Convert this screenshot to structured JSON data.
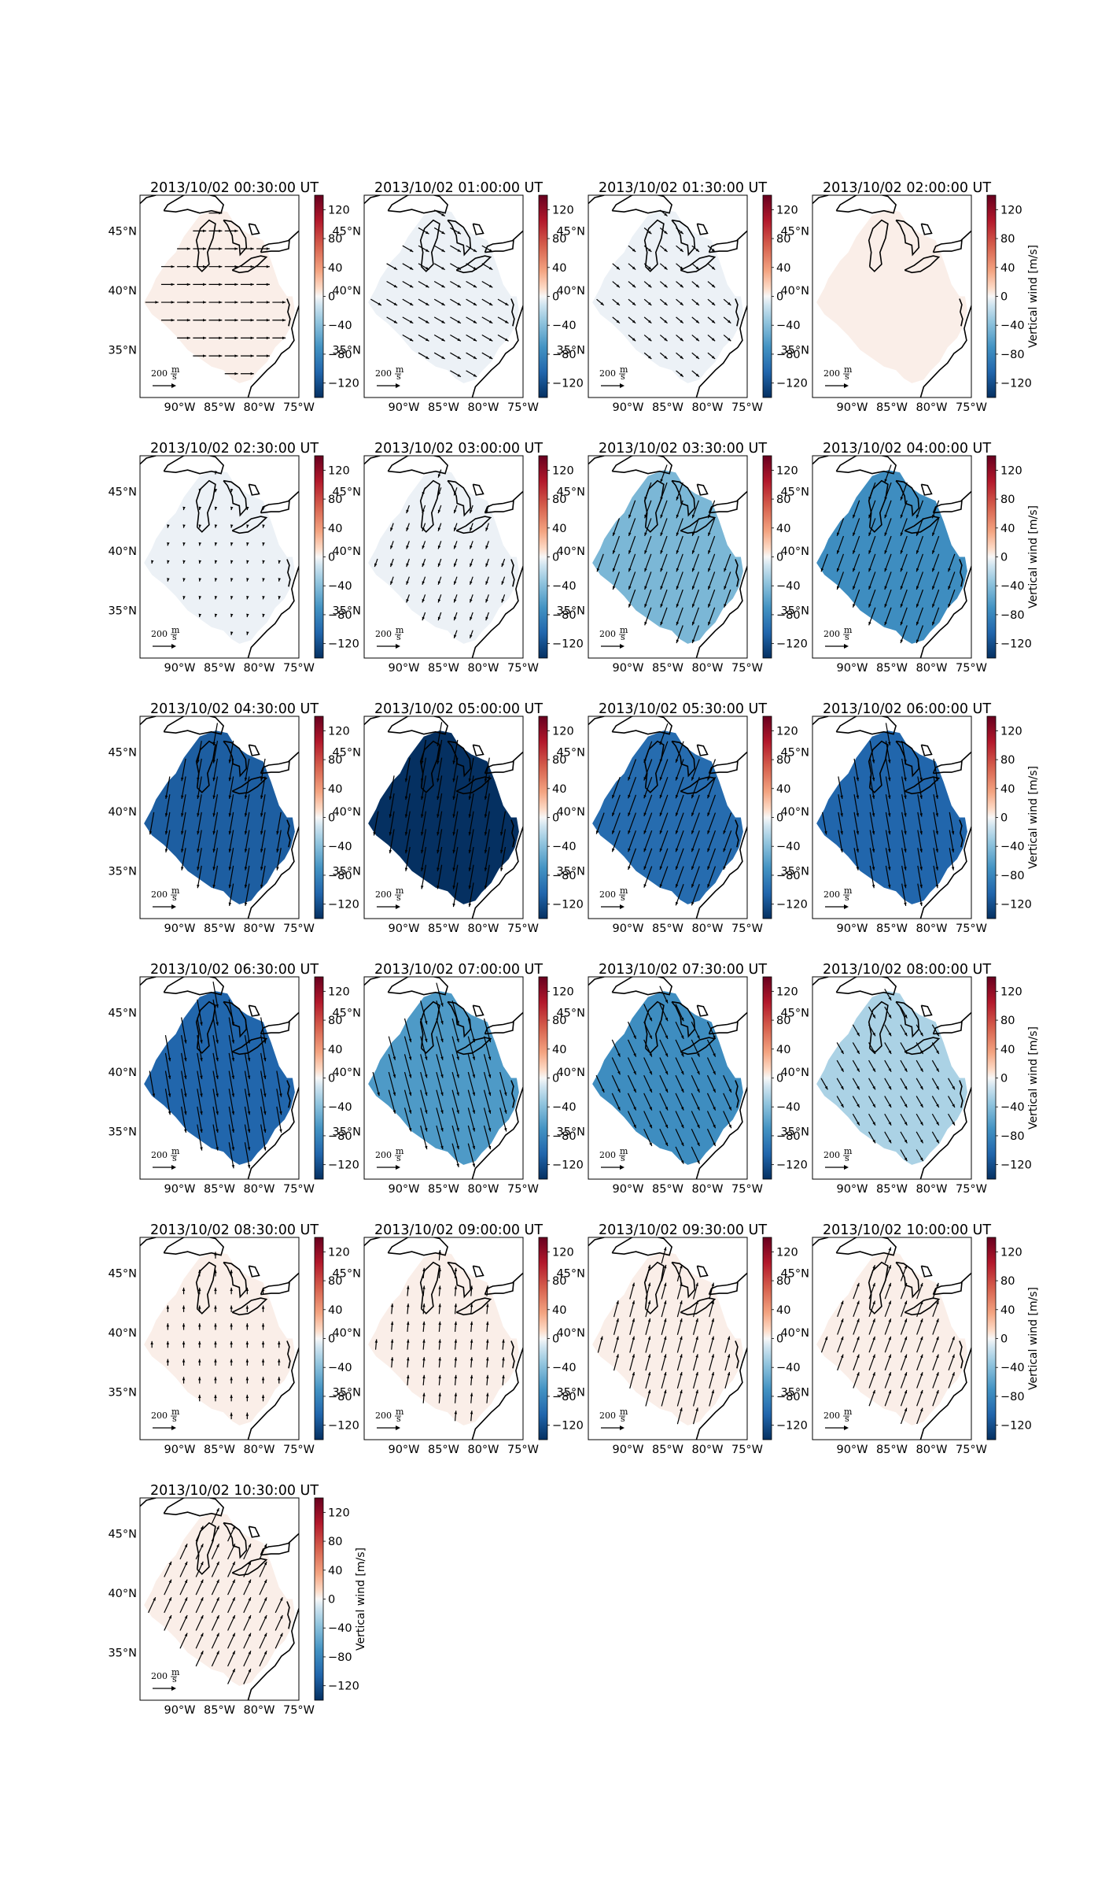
{
  "figure": {
    "colorbar_ticks": [
      "120",
      "80",
      "40",
      "0",
      "−40",
      "−80",
      "−120"
    ],
    "colorbar_label": "Vertical wind [m/s]",
    "lat_ticks": [
      "45°N",
      "40°N",
      "35°N"
    ],
    "lon_ticks": [
      "90°W",
      "85°W",
      "80°W",
      "75°W"
    ],
    "scale_key_label": "200 m/s",
    "scale_key_value": "200",
    "scale_key_unit_num": "m",
    "scale_key_unit_den": "s",
    "colormap_low": "#053061",
    "colormap_mid": "#f7f7f7",
    "colormap_high": "#67001f"
  },
  "panels": [
    {
      "title": "2013/10/02 00:30:00 UT",
      "vertical_wind": 5,
      "wind_dir_deg": 90,
      "wind_strength": 0.7
    },
    {
      "title": "2013/10/02 01:00:00 UT",
      "vertical_wind": -8,
      "wind_dir_deg": 120,
      "wind_strength": 0.65
    },
    {
      "title": "2013/10/02 01:30:00 UT",
      "vertical_wind": -4,
      "wind_dir_deg": 130,
      "wind_strength": 0.5
    },
    {
      "title": "2013/10/02 02:00:00 UT",
      "vertical_wind": 5,
      "wind_dir_deg": 160,
      "wind_strength": 0.0
    },
    {
      "title": "2013/10/02 02:30:00 UT",
      "vertical_wind": -3,
      "wind_dir_deg": 190,
      "wind_strength": 0.08
    },
    {
      "title": "2013/10/02 03:00:00 UT",
      "vertical_wind": -4,
      "wind_dir_deg": 200,
      "wind_strength": 0.45
    },
    {
      "title": "2013/10/02 03:30:00 UT",
      "vertical_wind": -45,
      "wind_dir_deg": 200,
      "wind_strength": 1.0
    },
    {
      "title": "2013/10/02 04:00:00 UT",
      "vertical_wind": -75,
      "wind_dir_deg": 200,
      "wind_strength": 1.0
    },
    {
      "title": "2013/10/02 04:30:00 UT",
      "vertical_wind": -110,
      "wind_dir_deg": 190,
      "wind_strength": 1.2
    },
    {
      "title": "2013/10/02 05:00:00 UT",
      "vertical_wind": -140,
      "wind_dir_deg": 190,
      "wind_strength": 1.3
    },
    {
      "title": "2013/10/02 05:30:00 UT",
      "vertical_wind": -100,
      "wind_dir_deg": 200,
      "wind_strength": 1.2
    },
    {
      "title": "2013/10/02 06:00:00 UT",
      "vertical_wind": -105,
      "wind_dir_deg": 170,
      "wind_strength": 1.2
    },
    {
      "title": "2013/10/02 06:30:00 UT",
      "vertical_wind": -105,
      "wind_dir_deg": 170,
      "wind_strength": 1.4
    },
    {
      "title": "2013/10/02 07:00:00 UT",
      "vertical_wind": -65,
      "wind_dir_deg": 165,
      "wind_strength": 1.3
    },
    {
      "title": "2013/10/02 07:30:00 UT",
      "vertical_wind": -75,
      "wind_dir_deg": 155,
      "wind_strength": 1.0
    },
    {
      "title": "2013/10/02 08:00:00 UT",
      "vertical_wind": -25,
      "wind_dir_deg": 150,
      "wind_strength": 0.7
    },
    {
      "title": "2013/10/02 08:30:00 UT",
      "vertical_wind": 1,
      "wind_dir_deg": 0,
      "wind_strength": 0.35
    },
    {
      "title": "2013/10/02 09:00:00 UT",
      "vertical_wind": 6,
      "wind_dir_deg": 5,
      "wind_strength": 0.55
    },
    {
      "title": "2013/10/02 09:30:00 UT",
      "vertical_wind": 4,
      "wind_dir_deg": 15,
      "wind_strength": 0.9
    },
    {
      "title": "2013/10/02 10:00:00 UT",
      "vertical_wind": 5,
      "wind_dir_deg": 20,
      "wind_strength": 0.9
    },
    {
      "title": "2013/10/02 10:30:00 UT",
      "vertical_wind": 6,
      "wind_dir_deg": 25,
      "wind_strength": 0.9
    }
  ]
}
